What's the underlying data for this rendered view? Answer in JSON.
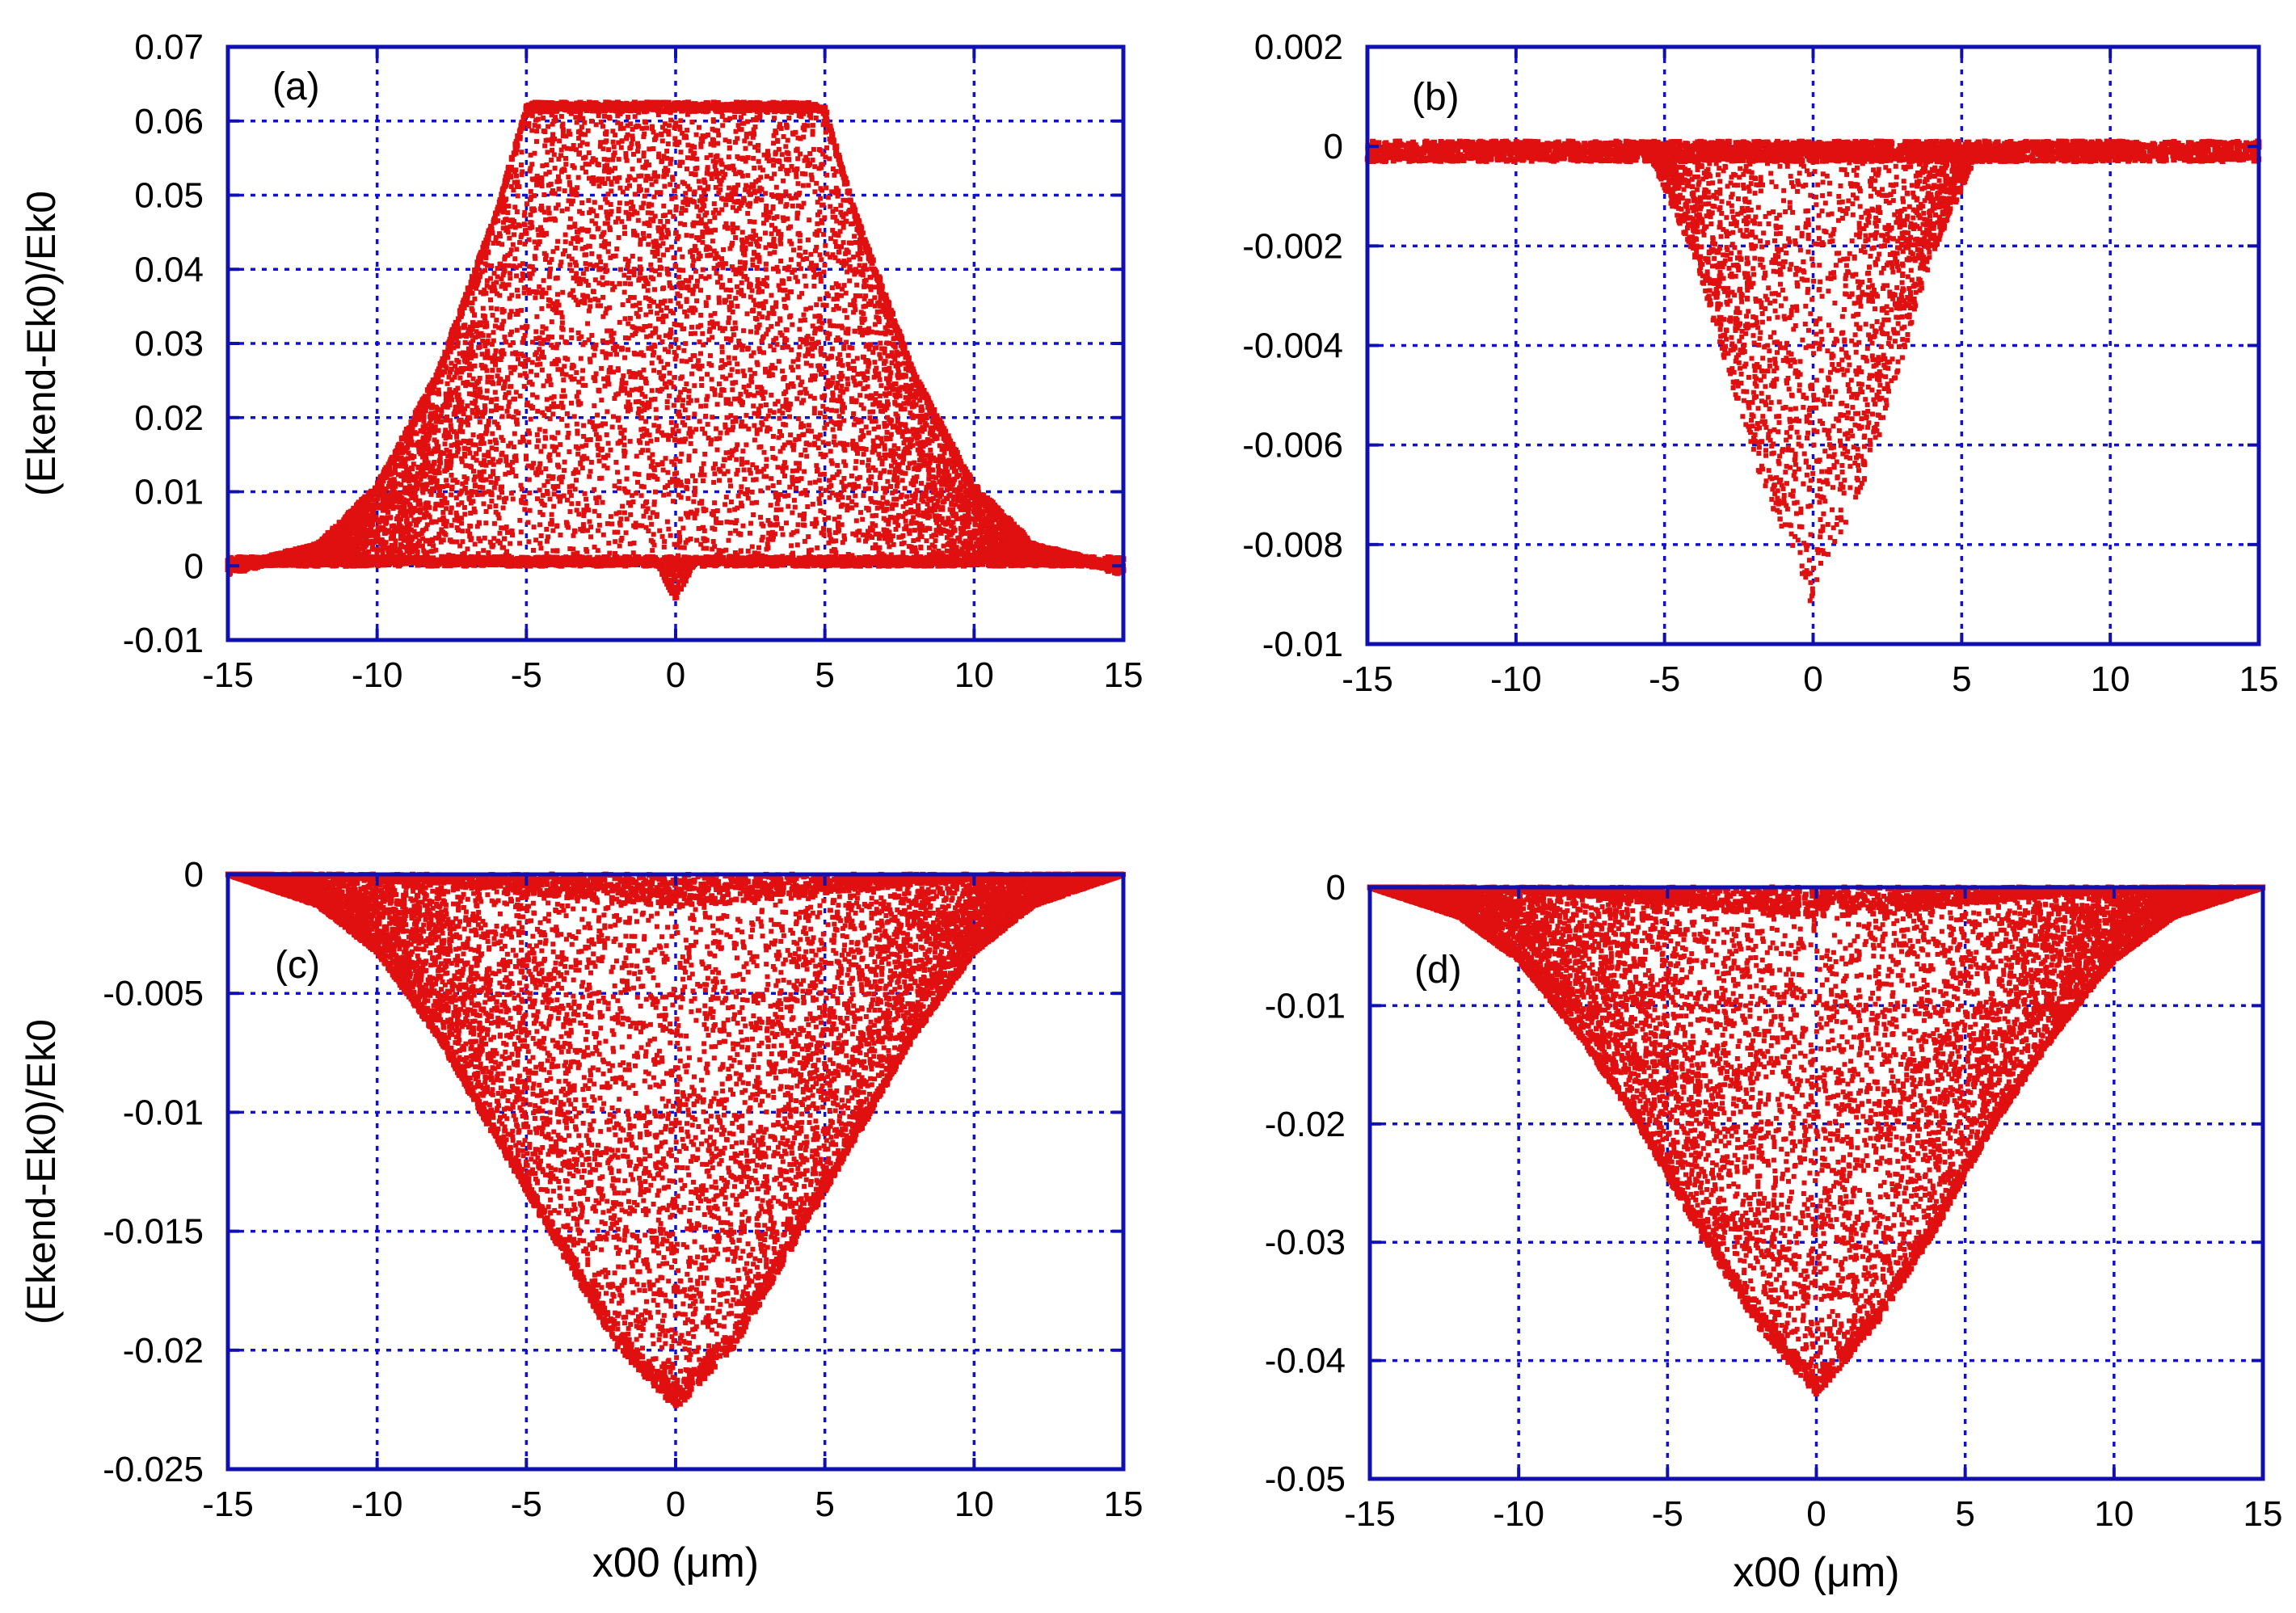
{
  "figure": {
    "background": "#ffffff"
  },
  "style": {
    "axis_color": "#1010b0",
    "grid_color": "#1010d0",
    "point_color": "#e01010"
  },
  "chart_data": [
    {
      "id": "a",
      "type": "scatter",
      "panel_label": "(a)",
      "xlabel": "",
      "ylabel": "(Ekend-Ek0)/Ek0",
      "xlim": [
        -15,
        15
      ],
      "ylim": [
        -0.01,
        0.07
      ],
      "xticks": [
        -15,
        -10,
        -5,
        0,
        5,
        10,
        15
      ],
      "xtick_labels": [
        "-15",
        "-10",
        "-5",
        "0",
        "5",
        "10",
        "15"
      ],
      "yticks": [
        -0.01,
        0,
        0.01,
        0.02,
        0.03,
        0.04,
        0.05,
        0.06,
        0.07
      ],
      "ytick_labels": [
        "-0.01",
        "0",
        "0.01",
        "0.02",
        "0.03",
        "0.04",
        "0.05",
        "0.06",
        "0.07"
      ],
      "grid": true,
      "envelope": {
        "shape": "plateau",
        "x": [
          -15,
          -12,
          -10,
          -8,
          -6,
          -5,
          -4.8,
          4.8,
          5,
          6,
          8,
          10,
          12,
          15
        ],
        "upper": [
          0,
          0.003,
          0.011,
          0.026,
          0.048,
          0.062,
          0.0625,
          0.0625,
          0.062,
          0.048,
          0.026,
          0.011,
          0.003,
          0
        ],
        "lower": 0
      },
      "dip": {
        "x_center": 0,
        "half_width": 0.6,
        "depth": -0.005
      },
      "n_points": 9000
    },
    {
      "id": "b",
      "type": "scatter",
      "panel_label": "(b)",
      "xlabel": "",
      "ylabel": "",
      "xlim": [
        -15,
        15
      ],
      "ylim": [
        -0.01,
        0.002
      ],
      "xticks": [
        -15,
        -10,
        -5,
        0,
        5,
        10,
        15
      ],
      "xtick_labels": [
        "-15",
        "-10",
        "-5",
        "0",
        "5",
        "10",
        "15"
      ],
      "yticks": [
        -0.01,
        -0.008,
        -0.006,
        -0.004,
        -0.002,
        0,
        0.002
      ],
      "ytick_labels": [
        "-0.01",
        "-0.008",
        "-0.006",
        "-0.004",
        "-0.002",
        "0",
        "0.002"
      ],
      "grid": true,
      "envelope": {
        "shape": "v",
        "x": [
          -5.5,
          -4,
          -2,
          0,
          2,
          4,
          5.5
        ],
        "lower": [
          -0.0002,
          -0.0022,
          -0.0063,
          -0.0093,
          -0.0063,
          -0.0022,
          -0.0002
        ],
        "upper": 0
      },
      "band": {
        "x_range": [
          -15,
          15
        ],
        "upper": 0.0001,
        "lower": -0.0003
      },
      "n_points": 2400
    },
    {
      "id": "c",
      "type": "scatter",
      "panel_label": "(c)",
      "xlabel": "x00 (μm)",
      "ylabel": "(Ekend-Ek0)/Ek0",
      "xlim": [
        -15,
        15
      ],
      "ylim": [
        -0.025,
        0
      ],
      "xticks": [
        -15,
        -10,
        -5,
        0,
        5,
        10,
        15
      ],
      "xtick_labels": [
        "-15",
        "-10",
        "-5",
        "0",
        "5",
        "10",
        "15"
      ],
      "yticks": [
        -0.025,
        -0.02,
        -0.015,
        -0.01,
        -0.005,
        0
      ],
      "ytick_labels": [
        "-0.025",
        "-0.02",
        "-0.015",
        "-0.01",
        "-0.005",
        "0"
      ],
      "grid": true,
      "envelope": {
        "shape": "bell",
        "x": [
          -15,
          -12,
          -10,
          -8,
          -6,
          -4,
          -2,
          0,
          2,
          4,
          6,
          8,
          10,
          12,
          15
        ],
        "lower": [
          0,
          -0.0013,
          -0.0033,
          -0.0068,
          -0.0112,
          -0.0155,
          -0.0198,
          -0.0225,
          -0.0198,
          -0.0155,
          -0.0112,
          -0.0068,
          -0.0033,
          -0.0013,
          0
        ],
        "upper": 0
      },
      "n_points": 9000
    },
    {
      "id": "d",
      "type": "scatter",
      "panel_label": "(d)",
      "xlabel": "x00 (μm)",
      "ylabel": "",
      "xlim": [
        -15,
        15
      ],
      "ylim": [
        -0.05,
        0
      ],
      "xticks": [
        -15,
        -10,
        -5,
        0,
        5,
        10,
        15
      ],
      "xtick_labels": [
        "-15",
        "-10",
        "-5",
        "0",
        "5",
        "10",
        "15"
      ],
      "yticks": [
        -0.05,
        -0.04,
        -0.03,
        -0.02,
        -0.01,
        0
      ],
      "ytick_labels": [
        "-0.05",
        "-0.04",
        "-0.03",
        "-0.02",
        "-0.01",
        "0"
      ],
      "grid": true,
      "envelope": {
        "shape": "bell",
        "x": [
          -15,
          -12,
          -10,
          -8,
          -6,
          -4,
          -2,
          0,
          2,
          4,
          6,
          8,
          10,
          12,
          15
        ],
        "lower": [
          0,
          -0.0025,
          -0.0062,
          -0.0125,
          -0.02,
          -0.029,
          -0.037,
          -0.043,
          -0.037,
          -0.029,
          -0.02,
          -0.0125,
          -0.0062,
          -0.0025,
          0
        ],
        "upper": 0
      },
      "n_points": 9000
    }
  ]
}
